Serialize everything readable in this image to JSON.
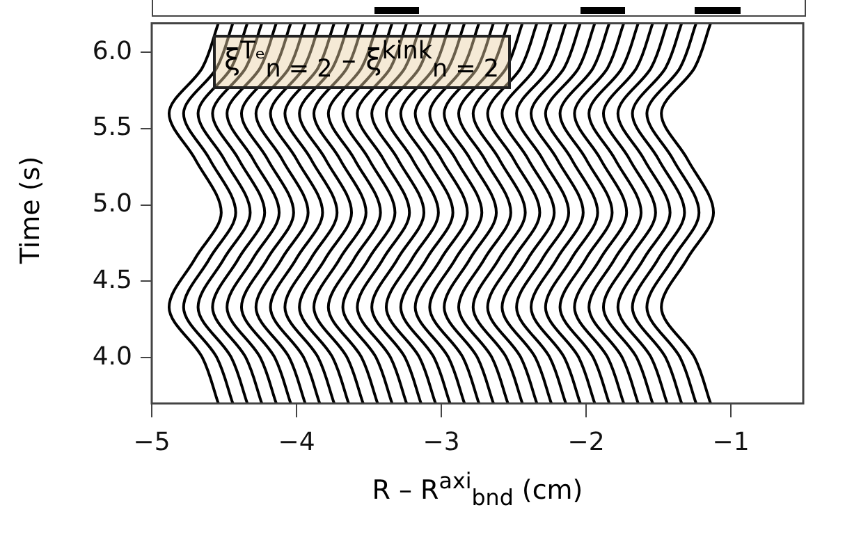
{
  "chart_data": {
    "type": "line",
    "xlabel": "R – R$^{axi}$$_{bnd}$ (cm)",
    "ylabel": "Time (s)",
    "annotations": [
      "ξ$^{Tₑ}$$_{n = 2}$ – ξ$^{kink}$$_{n = 2}$"
    ],
    "xlim": [
      -5,
      -0.5
    ],
    "xticks": [
      -5,
      -4,
      -3,
      -2,
      -1
    ],
    "ylim": [
      3.7,
      6.19
    ],
    "yticks": [
      {
        "value": 4,
        "label": "4.0"
      },
      4.5,
      {
        "value": 5,
        "label": "5.0"
      },
      5.5,
      {
        "value": 6,
        "label": "6.0"
      }
    ],
    "grid": false,
    "legend": false,
    "marker": "none",
    "line_style": "solid",
    "series": [
      {
        "color": "#000000",
        "x": [
          -4.54,
          -4.65,
          -4.88,
          -4.7,
          -4.52,
          -4.7,
          -4.88,
          -4.65,
          -4.54
        ],
        "values": [
          3.7,
          4.0,
          4.33,
          4.65,
          4.95,
          5.3,
          5.6,
          5.9,
          6.19
        ]
      },
      {
        "color": "#000000",
        "x": [
          -4.44,
          -4.55,
          -4.78,
          -4.6,
          -4.42,
          -4.6,
          -4.78,
          -4.55,
          -4.44
        ],
        "values": [
          3.7,
          4.0,
          4.33,
          4.65,
          4.95,
          5.3,
          5.6,
          5.9,
          6.19
        ]
      },
      {
        "color": "#000000",
        "x": [
          -4.34,
          -4.45,
          -4.68,
          -4.5,
          -4.32,
          -4.5,
          -4.68,
          -4.45,
          -4.34
        ],
        "values": [
          3.7,
          4.0,
          4.33,
          4.65,
          4.95,
          5.3,
          5.6,
          5.9,
          6.19
        ]
      },
      {
        "color": "#000000",
        "x": [
          -4.24,
          -4.35,
          -4.58,
          -4.4,
          -4.22,
          -4.4,
          -4.58,
          -4.35,
          -4.24
        ],
        "values": [
          3.7,
          4.0,
          4.33,
          4.65,
          4.95,
          5.3,
          5.6,
          5.9,
          6.19
        ]
      },
      {
        "color": "#000000",
        "x": [
          -4.14,
          -4.25,
          -4.48,
          -4.3,
          -4.12,
          -4.3,
          -4.48,
          -4.25,
          -4.14
        ],
        "values": [
          3.7,
          4.0,
          4.33,
          4.65,
          4.95,
          5.3,
          5.6,
          5.9,
          6.19
        ]
      },
      {
        "color": "#000000",
        "x": [
          -4.04,
          -4.15,
          -4.38,
          -4.2,
          -4.02,
          -4.2,
          -4.38,
          -4.15,
          -4.04
        ],
        "values": [
          3.7,
          4.0,
          4.33,
          4.65,
          4.95,
          5.3,
          5.6,
          5.9,
          6.19
        ]
      },
      {
        "color": "#000000",
        "x": [
          -3.94,
          -4.05,
          -4.28,
          -4.1,
          -3.92,
          -4.1,
          -4.28,
          -4.05,
          -3.94
        ],
        "values": [
          3.7,
          4.0,
          4.33,
          4.65,
          4.95,
          5.3,
          5.6,
          5.9,
          6.19
        ]
      },
      {
        "color": "#000000",
        "x": [
          -3.84,
          -3.95,
          -4.18,
          -4,
          -3.82,
          -4,
          -4.18,
          -3.95,
          -3.84
        ],
        "values": [
          3.7,
          4.0,
          4.33,
          4.65,
          4.95,
          5.3,
          5.6,
          5.9,
          6.19
        ]
      },
      {
        "color": "#000000",
        "x": [
          -3.74,
          -3.85,
          -4.08,
          -3.9,
          -3.72,
          -3.9,
          -4.08,
          -3.85,
          -3.74
        ],
        "values": [
          3.7,
          4.0,
          4.33,
          4.65,
          4.95,
          5.3,
          5.6,
          5.9,
          6.19
        ]
      },
      {
        "color": "#000000",
        "x": [
          -3.64,
          -3.75,
          -3.98,
          -3.8,
          -3.62,
          -3.8,
          -3.98,
          -3.75,
          -3.64
        ],
        "values": [
          3.7,
          4.0,
          4.33,
          4.65,
          4.95,
          5.3,
          5.6,
          5.9,
          6.19
        ]
      },
      {
        "color": "#000000",
        "x": [
          -3.54,
          -3.65,
          -3.88,
          -3.7,
          -3.52,
          -3.7,
          -3.88,
          -3.65,
          -3.54
        ],
        "values": [
          3.7,
          4.0,
          4.33,
          4.65,
          4.95,
          5.3,
          5.6,
          5.9,
          6.19
        ]
      },
      {
        "color": "#000000",
        "x": [
          -3.44,
          -3.55,
          -3.78,
          -3.6,
          -3.42,
          -3.6,
          -3.78,
          -3.55,
          -3.44
        ],
        "values": [
          3.7,
          4.0,
          4.33,
          4.65,
          4.95,
          5.3,
          5.6,
          5.9,
          6.19
        ]
      },
      {
        "color": "#000000",
        "x": [
          -3.34,
          -3.45,
          -3.68,
          -3.5,
          -3.32,
          -3.5,
          -3.68,
          -3.45,
          -3.34
        ],
        "values": [
          3.7,
          4.0,
          4.33,
          4.65,
          4.95,
          5.3,
          5.6,
          5.9,
          6.19
        ]
      },
      {
        "color": "#000000",
        "x": [
          -3.24,
          -3.35,
          -3.58,
          -3.4,
          -3.22,
          -3.4,
          -3.58,
          -3.35,
          -3.24
        ],
        "values": [
          3.7,
          4.0,
          4.33,
          4.65,
          4.95,
          5.3,
          5.6,
          5.9,
          6.19
        ]
      },
      {
        "color": "#000000",
        "x": [
          -3.14,
          -3.25,
          -3.48,
          -3.3,
          -3.12,
          -3.3,
          -3.48,
          -3.25,
          -3.14
        ],
        "values": [
          3.7,
          4.0,
          4.33,
          4.65,
          4.95,
          5.3,
          5.6,
          5.9,
          6.19
        ]
      },
      {
        "color": "#000000",
        "x": [
          -3.04,
          -3.15,
          -3.38,
          -3.2,
          -3.02,
          -3.2,
          -3.38,
          -3.15,
          -3.04
        ],
        "values": [
          3.7,
          4.0,
          4.33,
          4.65,
          4.95,
          5.3,
          5.6,
          5.9,
          6.19
        ]
      },
      {
        "color": "#000000",
        "x": [
          -2.94,
          -3.05,
          -3.28,
          -3.1,
          -2.92,
          -3.1,
          -3.28,
          -3.05,
          -2.94
        ],
        "values": [
          3.7,
          4.0,
          4.33,
          4.65,
          4.95,
          5.3,
          5.6,
          5.9,
          6.19
        ]
      },
      {
        "color": "#000000",
        "x": [
          -2.84,
          -2.95,
          -3.18,
          -3,
          -2.82,
          -3,
          -3.18,
          -2.95,
          -2.84
        ],
        "values": [
          3.7,
          4.0,
          4.33,
          4.65,
          4.95,
          5.3,
          5.6,
          5.9,
          6.19
        ]
      },
      {
        "color": "#000000",
        "x": [
          -2.74,
          -2.85,
          -3.08,
          -2.9,
          -2.72,
          -2.9,
          -3.08,
          -2.85,
          -2.74
        ],
        "values": [
          3.7,
          4.0,
          4.33,
          4.65,
          4.95,
          5.3,
          5.6,
          5.9,
          6.19
        ]
      },
      {
        "color": "#000000",
        "x": [
          -2.64,
          -2.75,
          -2.98,
          -2.8,
          -2.62,
          -2.8,
          -2.98,
          -2.75,
          -2.64
        ],
        "values": [
          3.7,
          4.0,
          4.33,
          4.65,
          4.95,
          5.3,
          5.6,
          5.9,
          6.19
        ]
      },
      {
        "color": "#000000",
        "x": [
          -2.54,
          -2.65,
          -2.88,
          -2.7,
          -2.52,
          -2.7,
          -2.88,
          -2.65,
          -2.54
        ],
        "values": [
          3.7,
          4.0,
          4.33,
          4.65,
          4.95,
          5.3,
          5.6,
          5.9,
          6.19
        ]
      },
      {
        "color": "#000000",
        "x": [
          -2.44,
          -2.55,
          -2.78,
          -2.6,
          -2.42,
          -2.6,
          -2.78,
          -2.55,
          -2.44
        ],
        "values": [
          3.7,
          4.0,
          4.33,
          4.65,
          4.95,
          5.3,
          5.6,
          5.9,
          6.19
        ]
      },
      {
        "color": "#000000",
        "x": [
          -2.34,
          -2.45,
          -2.68,
          -2.5,
          -2.32,
          -2.5,
          -2.68,
          -2.45,
          -2.34
        ],
        "values": [
          3.7,
          4.0,
          4.33,
          4.65,
          4.95,
          5.3,
          5.6,
          5.9,
          6.19
        ]
      },
      {
        "color": "#000000",
        "x": [
          -2.24,
          -2.35,
          -2.58,
          -2.4,
          -2.22,
          -2.4,
          -2.58,
          -2.35,
          -2.24
        ],
        "values": [
          3.7,
          4.0,
          4.33,
          4.65,
          4.95,
          5.3,
          5.6,
          5.9,
          6.19
        ]
      },
      {
        "color": "#000000",
        "x": [
          -2.14,
          -2.25,
          -2.48,
          -2.3,
          -2.12,
          -2.3,
          -2.48,
          -2.25,
          -2.14
        ],
        "values": [
          3.7,
          4.0,
          4.33,
          4.65,
          4.95,
          5.3,
          5.6,
          5.9,
          6.19
        ]
      },
      {
        "color": "#000000",
        "x": [
          -2.04,
          -2.15,
          -2.38,
          -2.2,
          -2.02,
          -2.2,
          -2.38,
          -2.15,
          -2.04
        ],
        "values": [
          3.7,
          4.0,
          4.33,
          4.65,
          4.95,
          5.3,
          5.6,
          5.9,
          6.19
        ]
      },
      {
        "color": "#000000",
        "x": [
          -1.94,
          -2.05,
          -2.28,
          -2.1,
          -1.92,
          -2.1,
          -2.28,
          -2.05,
          -1.94
        ],
        "values": [
          3.7,
          4.0,
          4.33,
          4.65,
          4.95,
          5.3,
          5.6,
          5.9,
          6.19
        ]
      },
      {
        "color": "#000000",
        "x": [
          -1.84,
          -1.95,
          -2.18,
          -2,
          -1.82,
          -2,
          -2.18,
          -1.95,
          -1.84
        ],
        "values": [
          3.7,
          4.0,
          4.33,
          4.65,
          4.95,
          5.3,
          5.6,
          5.9,
          6.19
        ]
      },
      {
        "color": "#000000",
        "x": [
          -1.74,
          -1.85,
          -2.08,
          -1.9,
          -1.72,
          -1.9,
          -2.08,
          -1.85,
          -1.74
        ],
        "values": [
          3.7,
          4.0,
          4.33,
          4.65,
          4.95,
          5.3,
          5.6,
          5.9,
          6.19
        ]
      },
      {
        "color": "#000000",
        "x": [
          -1.64,
          -1.75,
          -1.98,
          -1.8,
          -1.62,
          -1.8,
          -1.98,
          -1.75,
          -1.64
        ],
        "values": [
          3.7,
          4.0,
          4.33,
          4.65,
          4.95,
          5.3,
          5.6,
          5.9,
          6.19
        ]
      },
      {
        "color": "#000000",
        "x": [
          -1.54,
          -1.65,
          -1.88,
          -1.7,
          -1.52,
          -1.7,
          -1.88,
          -1.65,
          -1.54
        ],
        "values": [
          3.7,
          4.0,
          4.33,
          4.65,
          4.95,
          5.3,
          5.6,
          5.9,
          6.19
        ]
      },
      {
        "color": "#000000",
        "x": [
          -1.44,
          -1.55,
          -1.78,
          -1.6,
          -1.42,
          -1.6,
          -1.78,
          -1.55,
          -1.44
        ],
        "values": [
          3.7,
          4.0,
          4.33,
          4.65,
          4.95,
          5.3,
          5.6,
          5.9,
          6.19
        ]
      },
      {
        "color": "#000000",
        "x": [
          -1.34,
          -1.45,
          -1.68,
          -1.5,
          -1.32,
          -1.5,
          -1.68,
          -1.45,
          -1.34
        ],
        "values": [
          3.7,
          4.0,
          4.33,
          4.65,
          4.95,
          5.3,
          5.6,
          5.9,
          6.19
        ]
      },
      {
        "color": "#000000",
        "x": [
          -1.24,
          -1.35,
          -1.58,
          -1.4,
          -1.22,
          -1.4,
          -1.58,
          -1.35,
          -1.24
        ],
        "values": [
          3.7,
          4.0,
          4.33,
          4.65,
          4.95,
          5.3,
          5.6,
          5.9,
          6.19
        ]
      },
      {
        "color": "#000000",
        "x": [
          -1.14,
          -1.25,
          -1.48,
          -1.3,
          -1.12,
          -1.3,
          -1.48,
          -1.25,
          -1.14
        ],
        "values": [
          3.7,
          4.0,
          4.33,
          4.65,
          4.95,
          5.3,
          5.6,
          5.9,
          6.19
        ]
      }
    ]
  }
}
